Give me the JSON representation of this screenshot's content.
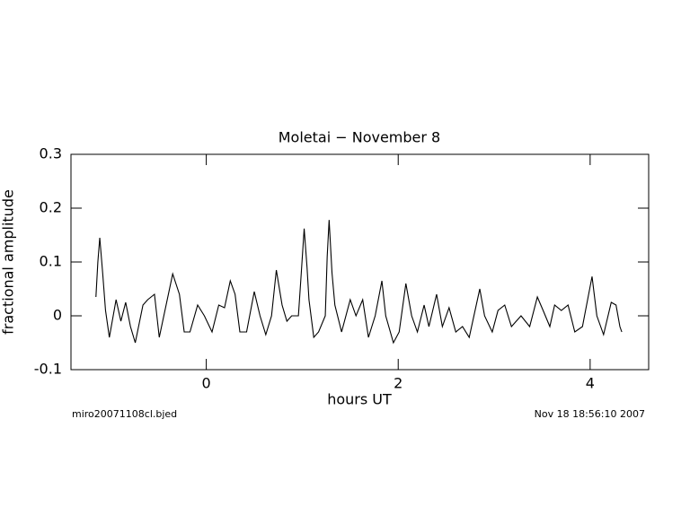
{
  "chart_data": {
    "type": "line",
    "title": "Moletai − November 8",
    "xlabel": "hours UT",
    "ylabel": "fractional amplitude",
    "footer_left": "miro20071108cl.bjed",
    "footer_right": "Nov 18 18:56:10 2007",
    "xlim": [
      -1.41,
      4.61
    ],
    "ylim": [
      -0.1,
      0.3
    ],
    "xticks": [
      0,
      2,
      4
    ],
    "yticks": [
      -0.1,
      0,
      0.1,
      0.2,
      0.3
    ],
    "grid": false,
    "series": [
      {
        "color": "#000000",
        "x": [
          -1.15,
          -1.13,
          -1.11,
          -1.08,
          -1.05,
          -1.01,
          -0.94,
          -0.89,
          -0.84,
          -0.79,
          -0.74,
          -0.66,
          -0.61,
          -0.54,
          -0.49,
          -0.35,
          -0.28,
          -0.23,
          -0.17,
          -0.09,
          -0.02,
          0.06,
          0.13,
          0.19,
          0.25,
          0.3,
          0.35,
          0.42,
          0.5,
          0.56,
          0.62,
          0.68,
          0.73,
          0.79,
          0.84,
          0.89,
          0.96,
          0.99,
          1.02,
          1.05,
          1.07,
          1.12,
          1.17,
          1.24,
          1.26,
          1.28,
          1.31,
          1.34,
          1.41,
          1.5,
          1.56,
          1.63,
          1.69,
          1.76,
          1.83,
          1.87,
          1.95,
          2.01,
          2.08,
          2.14,
          2.2,
          2.27,
          2.32,
          2.4,
          2.46,
          2.53,
          2.6,
          2.67,
          2.74,
          2.85,
          2.9,
          2.98,
          3.04,
          3.11,
          3.18,
          3.28,
          3.37,
          3.45,
          3.51,
          3.58,
          3.63,
          3.7,
          3.77,
          3.84,
          3.92,
          4.02,
          4.07,
          4.14,
          4.22,
          4.27,
          4.31,
          4.33
        ],
        "values": [
          0.035,
          0.1,
          0.145,
          0.08,
          0.01,
          -0.04,
          0.03,
          -0.01,
          0.025,
          -0.02,
          -0.05,
          0.02,
          0.03,
          0.04,
          -0.04,
          0.078,
          0.04,
          -0.03,
          -0.03,
          0.02,
          0.0,
          -0.03,
          0.02,
          0.015,
          0.065,
          0.04,
          -0.03,
          -0.03,
          0.045,
          0.0,
          -0.035,
          0.0,
          0.085,
          0.02,
          -0.01,
          0.0,
          0.0,
          0.08,
          0.162,
          0.09,
          0.03,
          -0.04,
          -0.03,
          0.0,
          0.11,
          0.178,
          0.08,
          0.02,
          -0.03,
          0.03,
          0.0,
          0.03,
          -0.04,
          0.0,
          0.065,
          0.0,
          -0.05,
          -0.03,
          0.06,
          0.0,
          -0.03,
          0.02,
          -0.02,
          0.04,
          -0.02,
          0.015,
          -0.03,
          -0.02,
          -0.04,
          0.05,
          0.0,
          -0.03,
          0.01,
          0.02,
          -0.02,
          0.0,
          -0.02,
          0.035,
          0.01,
          -0.02,
          0.02,
          0.01,
          0.02,
          -0.03,
          -0.02,
          0.073,
          0.0,
          -0.035,
          0.025,
          0.02,
          -0.02,
          -0.03
        ]
      }
    ]
  }
}
